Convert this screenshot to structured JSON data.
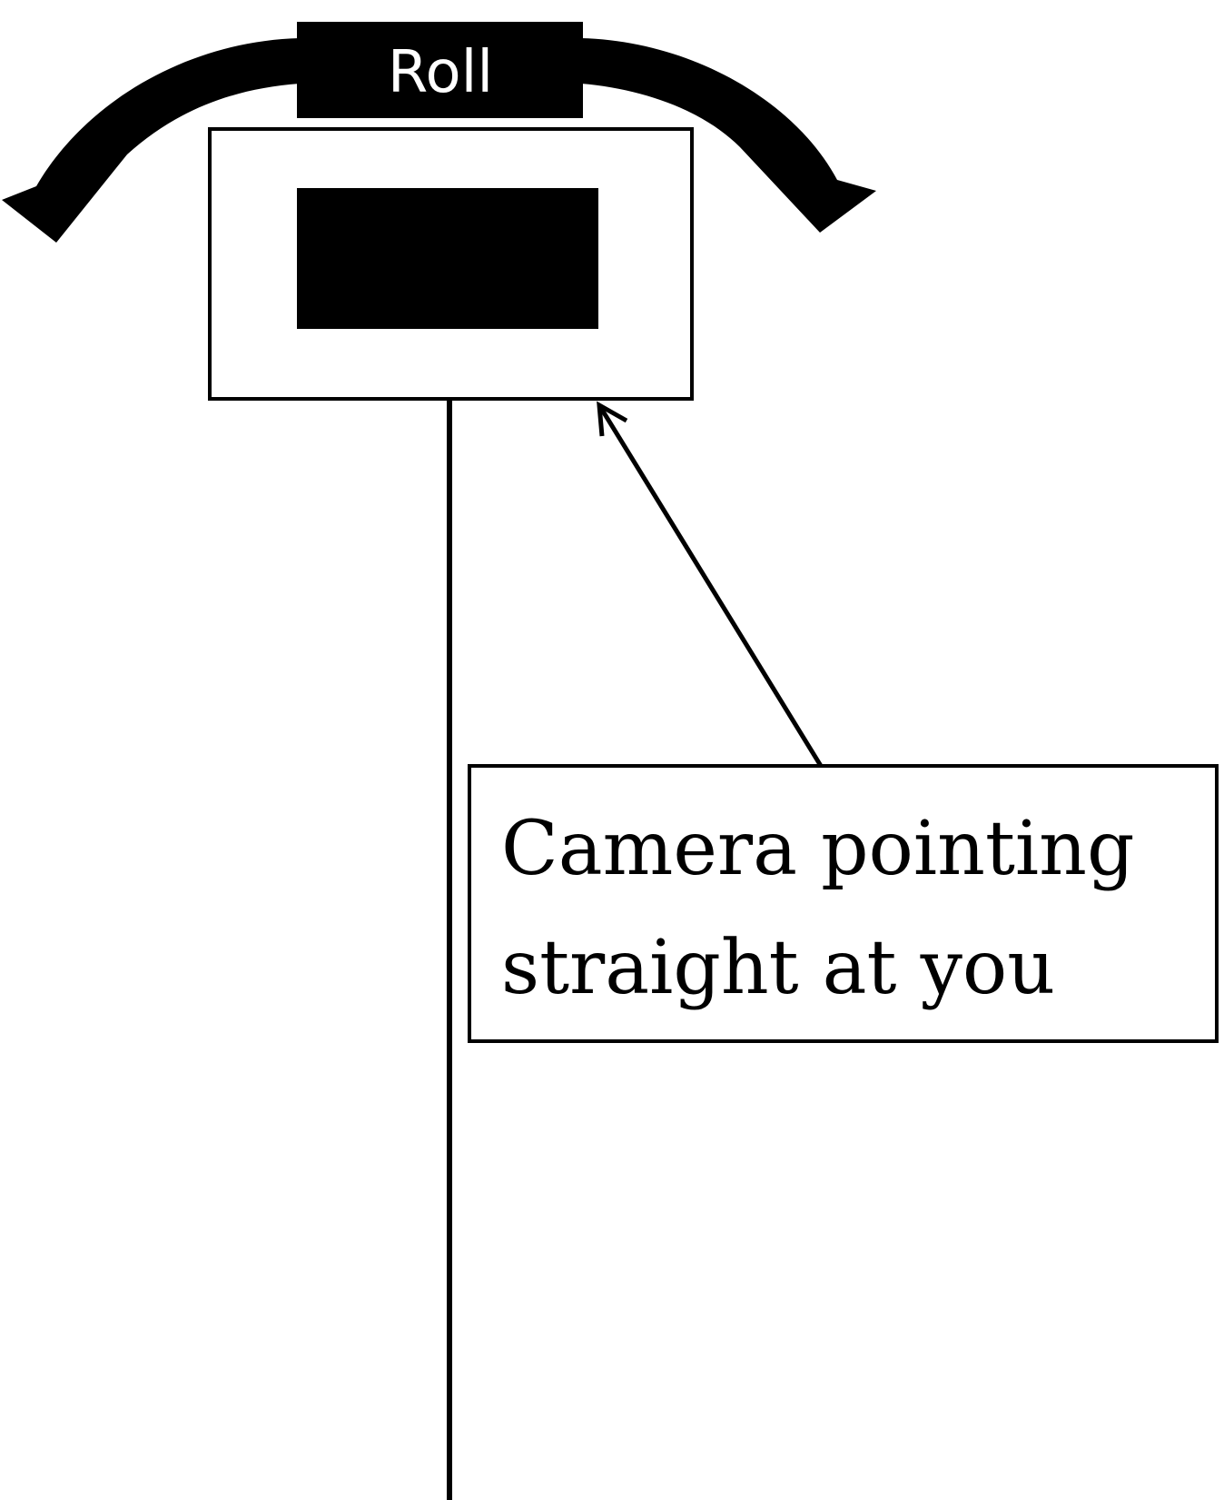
{
  "diagram": {
    "roll_label": "Roll",
    "callout_line1": "Camera pointing",
    "callout_line2": "straight at you",
    "colors": {
      "foreground": "#000000",
      "background": "#ffffff",
      "label_text": "#ffffff"
    },
    "icons": {
      "roll_left": "curved-arrow-left-icon",
      "roll_right": "curved-arrow-right-icon",
      "pointer": "arrow-pointer-icon"
    }
  }
}
